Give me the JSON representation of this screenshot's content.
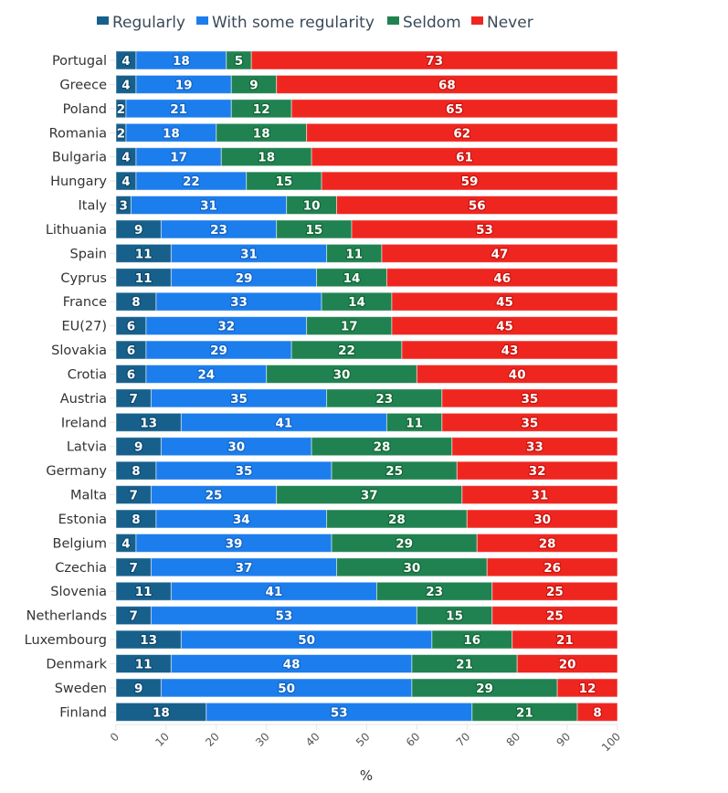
{
  "chart_data": {
    "type": "bar",
    "orientation": "horizontal",
    "stacked": true,
    "title": "",
    "xlabel": "%",
    "ylabel": "",
    "xlim": [
      0,
      100
    ],
    "xticks": [
      0,
      10,
      20,
      30,
      40,
      50,
      60,
      70,
      80,
      90,
      100
    ],
    "grid": false,
    "legend_position": "top",
    "categories": [
      "Portugal",
      "Greece",
      "Poland",
      "Romania",
      "Bulgaria",
      "Hungary",
      "Italy",
      "Lithuania",
      "Spain",
      "Cyprus",
      "France",
      "EU(27)",
      "Slovakia",
      "Crotia",
      "Austria",
      "Ireland",
      "Latvia",
      "Germany",
      "Malta",
      "Estonia",
      "Belgium",
      "Czechia",
      "Slovenia",
      "Netherlands",
      "Luxembourg",
      "Denmark",
      "Sweden",
      "Finland"
    ],
    "series": [
      {
        "name": "Regularly",
        "color": "#17608c",
        "values": [
          4,
          4,
          2,
          2,
          4,
          4,
          3,
          9,
          11,
          11,
          8,
          6,
          6,
          6,
          7,
          13,
          9,
          8,
          7,
          8,
          4,
          7,
          11,
          7,
          13,
          11,
          9,
          18
        ]
      },
      {
        "name": "With some regularity",
        "color": "#1c7ded",
        "values": [
          18,
          19,
          21,
          18,
          17,
          22,
          31,
          23,
          31,
          29,
          33,
          32,
          29,
          24,
          35,
          41,
          30,
          35,
          25,
          34,
          39,
          37,
          41,
          53,
          50,
          48,
          50,
          53
        ]
      },
      {
        "name": "Seldom",
        "color": "#208250",
        "values": [
          5,
          9,
          12,
          18,
          18,
          15,
          10,
          15,
          11,
          14,
          14,
          17,
          22,
          30,
          23,
          11,
          28,
          25,
          37,
          28,
          29,
          30,
          23,
          15,
          16,
          21,
          29,
          21
        ]
      },
      {
        "name": "Never",
        "color": "#ef2620",
        "values": [
          73,
          68,
          65,
          62,
          61,
          59,
          56,
          53,
          47,
          46,
          45,
          45,
          43,
          40,
          35,
          35,
          33,
          32,
          31,
          30,
          28,
          26,
          25,
          25,
          21,
          20,
          12,
          8
        ]
      }
    ],
    "label_stroke_colors": [
      "#0f4a6e",
      "#1465c4",
      "#146638",
      "#c8140f"
    ]
  }
}
